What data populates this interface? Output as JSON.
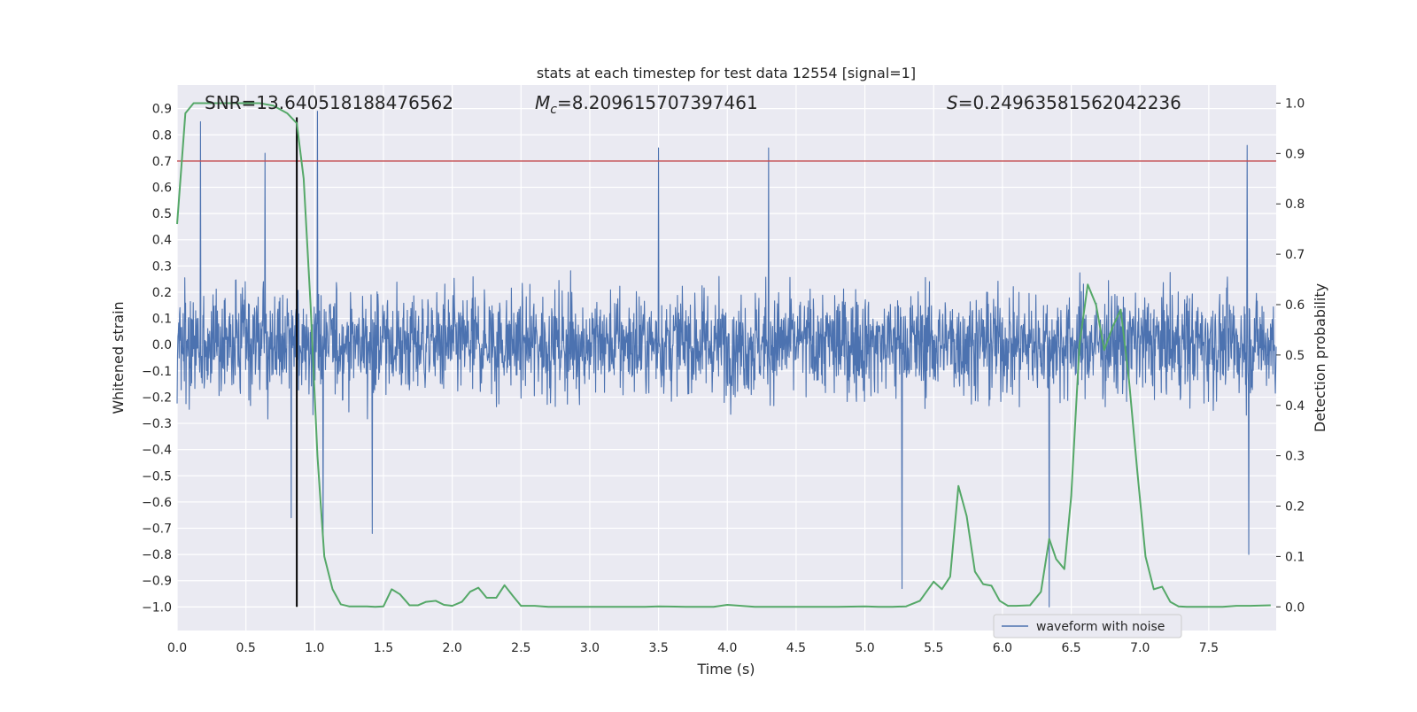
{
  "chart_data": {
    "type": "line",
    "title": "stats at each timestep for test data 12554 [signal=1]",
    "xlabel": "Time (s)",
    "ylabel_left": "Whitened strain",
    "ylabel_right": "Detection probability",
    "xlim": [
      0.0,
      7.99
    ],
    "ylim_left": [
      -1.09,
      0.99
    ],
    "ylim_right": [
      -0.047,
      1.036
    ],
    "x_ticks": [
      "0.0",
      "0.5",
      "1.0",
      "1.5",
      "2.0",
      "2.5",
      "3.0",
      "3.5",
      "4.0",
      "4.5",
      "5.0",
      "5.5",
      "6.0",
      "6.5",
      "7.0",
      "7.5"
    ],
    "y_left_ticks": [
      "0.9",
      "0.8",
      "0.7",
      "0.6",
      "0.5",
      "0.4",
      "0.3",
      "0.2",
      "0.1",
      "0.0",
      "−0.1",
      "−0.2",
      "−0.3",
      "−0.4",
      "−0.5",
      "−0.6",
      "−0.7",
      "−0.8",
      "−0.9",
      "−1.0"
    ],
    "y_right_ticks": [
      "1.0",
      "0.9",
      "0.8",
      "0.7",
      "0.6",
      "0.5",
      "0.4",
      "0.3",
      "0.2",
      "0.1",
      "0.0"
    ],
    "annotations": {
      "snr": {
        "text": "SNR=13.640518188476562"
      },
      "mc": {
        "prefix": "M",
        "sub": "c",
        "text": "=8.209615707397461"
      },
      "s": {
        "prefix": "S",
        "text": "=0.24963581562042236"
      }
    },
    "threshold": {
      "value": 0.7,
      "axis": "left",
      "color": "#c44e52"
    },
    "marker_line": {
      "x": 0.87,
      "color": "#000000"
    },
    "series": [
      {
        "name": "waveform with noise",
        "axis": "left",
        "color": "#4c72b0",
        "sample_rate_hz": 2048,
        "typical_range": [
          -0.29,
          0.3
        ],
        "peaks": [
          {
            "x": 0.17,
            "y": 0.85
          },
          {
            "x": 0.64,
            "y": 0.73
          },
          {
            "x": 0.83,
            "y": -0.66
          },
          {
            "x": 1.02,
            "y": 0.89
          },
          {
            "x": 1.06,
            "y": -0.72
          },
          {
            "x": 1.42,
            "y": -0.72
          },
          {
            "x": 3.5,
            "y": 0.75
          },
          {
            "x": 4.3,
            "y": 0.75
          },
          {
            "x": 5.27,
            "y": -0.93
          },
          {
            "x": 6.34,
            "y": -1.0
          },
          {
            "x": 7.78,
            "y": 0.76
          },
          {
            "x": 7.79,
            "y": -0.8
          }
        ]
      },
      {
        "name": "Detection probability",
        "axis": "right",
        "color": "#55a868",
        "x": [
          0.0,
          0.06,
          0.12,
          0.2,
          0.3,
          0.4,
          0.5,
          0.6,
          0.7,
          0.8,
          0.87,
          0.92,
          0.97,
          1.02,
          1.07,
          1.13,
          1.19,
          1.25,
          1.32,
          1.38,
          1.44,
          1.5,
          1.56,
          1.62,
          1.69,
          1.75,
          1.81,
          1.88,
          1.94,
          2.0,
          2.07,
          2.13,
          2.19,
          2.25,
          2.32,
          2.38,
          2.44,
          2.5,
          2.6,
          2.7,
          2.8,
          3.0,
          3.2,
          3.4,
          3.5,
          3.7,
          3.9,
          4.0,
          4.2,
          4.4,
          4.6,
          4.8,
          5.0,
          5.1,
          5.2,
          5.3,
          5.4,
          5.5,
          5.56,
          5.62,
          5.68,
          5.74,
          5.8,
          5.86,
          5.92,
          5.98,
          6.04,
          6.1,
          6.2,
          6.28,
          6.34,
          6.39,
          6.45,
          6.5,
          6.56,
          6.62,
          6.68,
          6.74,
          6.8,
          6.86,
          6.92,
          6.98,
          7.04,
          7.1,
          7.16,
          7.22,
          7.28,
          7.34,
          7.4,
          7.5,
          7.6,
          7.7,
          7.8,
          7.95
        ],
        "y": [
          0.76,
          0.98,
          1.0,
          1.0,
          1.0,
          1.0,
          1.0,
          1.0,
          0.995,
          0.98,
          0.96,
          0.85,
          0.6,
          0.3,
          0.1,
          0.035,
          0.005,
          0.001,
          0.001,
          0.001,
          0.0,
          0.001,
          0.035,
          0.025,
          0.003,
          0.003,
          0.01,
          0.012,
          0.004,
          0.002,
          0.01,
          0.03,
          0.038,
          0.018,
          0.018,
          0.043,
          0.022,
          0.002,
          0.002,
          0.0,
          0.0,
          0.0,
          0.0,
          0.0,
          0.001,
          0.0,
          0.0,
          0.004,
          0.0,
          0.0,
          0.0,
          0.0,
          0.001,
          0.0,
          0.0,
          0.001,
          0.012,
          0.05,
          0.035,
          0.06,
          0.24,
          0.18,
          0.07,
          0.045,
          0.042,
          0.012,
          0.002,
          0.002,
          0.003,
          0.03,
          0.135,
          0.095,
          0.075,
          0.22,
          0.52,
          0.64,
          0.6,
          0.51,
          0.555,
          0.59,
          0.45,
          0.27,
          0.1,
          0.035,
          0.04,
          0.01,
          0.001,
          0.0,
          0.0,
          0.0,
          0.0,
          0.002,
          0.002,
          0.003
        ]
      }
    ],
    "legend": {
      "placement": "lower-right",
      "entries": [
        "waveform with noise"
      ]
    }
  }
}
